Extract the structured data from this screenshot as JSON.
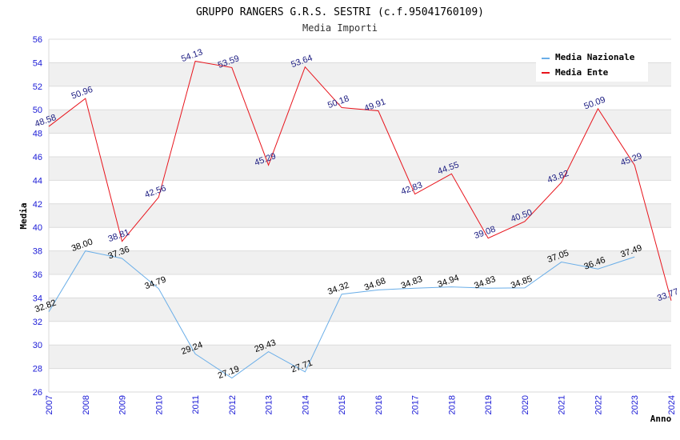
{
  "chart_data": {
    "type": "line",
    "title": "GRUPPO RANGERS G.R.S. SESTRI (c.f.95041760109)",
    "subtitle": "Media Importi",
    "xlabel": "Anno",
    "ylabel": "Media",
    "ylim": [
      26,
      56
    ],
    "ytick_step": 2,
    "categories": [
      "2007",
      "2008",
      "2009",
      "2010",
      "2011",
      "2012",
      "2013",
      "2014",
      "2015",
      "2016",
      "2017",
      "2018",
      "2019",
      "2020",
      "2021",
      "2022",
      "2023",
      "2024"
    ],
    "legend_position": "top-right",
    "series": [
      {
        "name": "Media Nazionale",
        "color": "#6aaee8",
        "label_color": "#000000",
        "values": [
          32.82,
          38.0,
          37.36,
          34.79,
          29.24,
          27.19,
          29.43,
          27.71,
          34.32,
          34.68,
          34.83,
          34.94,
          34.83,
          34.85,
          37.05,
          36.46,
          37.49,
          null
        ],
        "labels": [
          "32.82",
          "38.00",
          "37.36",
          "34.79",
          "29.24",
          "27.19",
          "29.43",
          "27.71",
          "34.32",
          "34.68",
          "34.83",
          "34.94",
          "34.83",
          "34.85",
          "37.05",
          "36.46",
          "37.49",
          ""
        ]
      },
      {
        "name": "Media Ente",
        "color": "#e8141c",
        "label_color": "#1a1a80",
        "values": [
          48.58,
          50.96,
          38.81,
          42.56,
          54.13,
          53.59,
          45.29,
          53.64,
          50.18,
          49.91,
          42.83,
          44.55,
          39.08,
          40.5,
          43.82,
          50.09,
          45.29,
          33.77
        ],
        "labels": [
          "48.58",
          "50.96",
          "38.81",
          "42.56",
          "54.13",
          "53.59",
          "45.29",
          "53.64",
          "50.18",
          "49.91",
          "42.83",
          "44.55",
          "39.08",
          "40.50",
          "43.82",
          "50.09",
          "45.29",
          "33.77"
        ]
      }
    ]
  }
}
